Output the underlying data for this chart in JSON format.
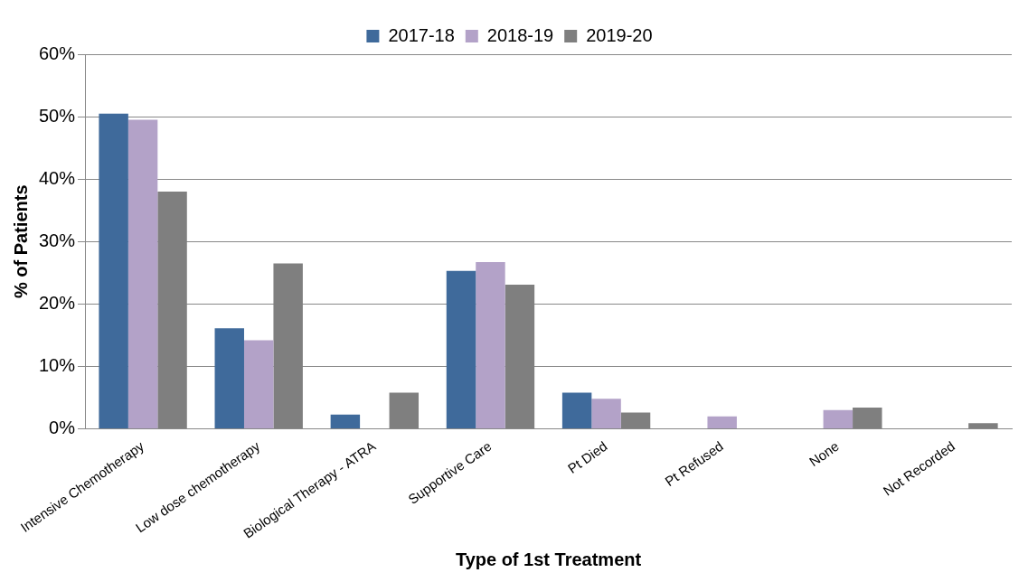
{
  "chart_data": {
    "type": "bar",
    "xlabel": "Type of 1st Treatment",
    "ylabel": "% of Patients",
    "categories": [
      "Intensive Chemotherapy",
      "Low dose chemotherapy",
      "Biological Therapy - ATRA",
      "Supportive Care",
      "Pt Died",
      "Pt Refused",
      "None",
      "Not Recorded"
    ],
    "series": [
      {
        "name": "2017-18",
        "color": "#3f6a9b",
        "values": [
          50.5,
          16.1,
          2.3,
          25.3,
          5.8,
          0,
          0,
          0
        ]
      },
      {
        "name": "2018-19",
        "color": "#b3a2c8",
        "values": [
          49.5,
          14.2,
          0,
          26.7,
          4.8,
          2.0,
          3.0,
          0
        ]
      },
      {
        "name": "2019-20",
        "color": "#7f7f7f",
        "values": [
          38.0,
          26.5,
          5.8,
          23.1,
          2.6,
          0,
          3.4,
          0.9
        ]
      }
    ],
    "ylim": [
      0,
      60
    ],
    "yticks": [
      {
        "value": 0,
        "label": "0%"
      },
      {
        "value": 10,
        "label": "10%"
      },
      {
        "value": 20,
        "label": "20%"
      },
      {
        "value": 30,
        "label": "30%"
      },
      {
        "value": 40,
        "label": "40%"
      },
      {
        "value": 50,
        "label": "50%"
      },
      {
        "value": 60,
        "label": "60%"
      }
    ],
    "grid": "y",
    "legend": "top"
  }
}
